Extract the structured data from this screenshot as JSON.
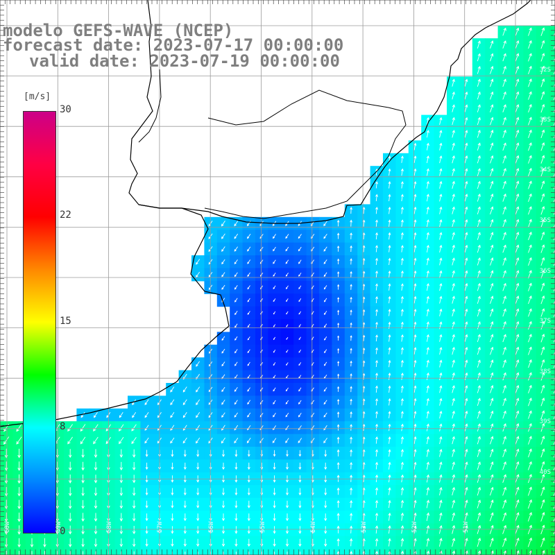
{
  "title": {
    "line1": "modelo GEFS-WAVE (NCEP)",
    "line2": "forecast date: 2023-07-17 00:00:00",
    "line3": "valid date: 2023-07-19 00:00:00"
  },
  "colorbar": {
    "unit": "[m/s]",
    "ticks": [
      "30",
      "22",
      "15",
      "8",
      "0"
    ],
    "colors": [
      "#0000ff",
      "#0088ff",
      "#00ffff",
      "#00ff00",
      "#ffff00",
      "#ff8800",
      "#ff0000",
      "#ff0044",
      "#cc0088"
    ]
  },
  "map": {
    "lat_labels": [
      "32S",
      "33S",
      "34S",
      "35S",
      "36S",
      "37S",
      "38S",
      "39S",
      "40S"
    ],
    "lon_labels": [
      "60W",
      "59W",
      "58W",
      "57W",
      "56W",
      "55W",
      "54W",
      "53W",
      "52W",
      "51W"
    ],
    "land_color": "#ffffff",
    "grid_color": "#9a9a9a",
    "coast_color": "#000000",
    "arrow_color": "#ffffff"
  }
}
